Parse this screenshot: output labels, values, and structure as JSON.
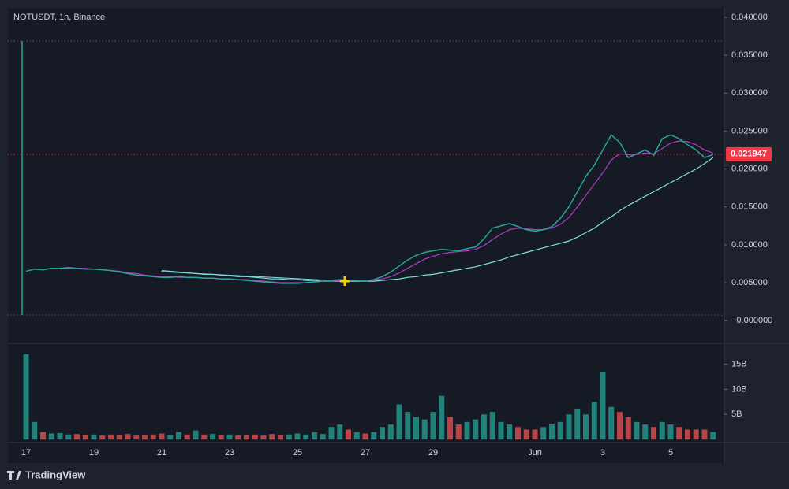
{
  "chart_data": {
    "type": "line",
    "title": "NOTUSDT, 1h, Binance",
    "brand": "TradingView",
    "categories": [
      "17",
      null,
      null,
      null,
      null,
      null,
      null,
      null,
      "19",
      null,
      null,
      null,
      null,
      null,
      null,
      null,
      "21",
      null,
      null,
      null,
      null,
      null,
      null,
      null,
      "23",
      null,
      null,
      null,
      null,
      null,
      null,
      null,
      "25",
      null,
      null,
      null,
      null,
      null,
      null,
      null,
      "27",
      null,
      null,
      null,
      null,
      null,
      null,
      null,
      "29",
      null,
      null,
      null,
      null,
      null,
      null,
      null,
      null,
      null,
      null,
      null,
      "Jun",
      null,
      null,
      null,
      null,
      null,
      null,
      null,
      "3",
      null,
      null,
      null,
      null,
      null,
      null,
      null,
      "5",
      null,
      null,
      null,
      null,
      null
    ],
    "series": [
      {
        "color": "#26a69a",
        "values": [
          0.0065,
          0.0068,
          0.0067,
          0.0069,
          0.0069,
          0.007,
          0.0069,
          0.0068,
          0.0068,
          0.0067,
          0.0066,
          0.0064,
          0.0062,
          0.006,
          0.0059,
          0.0058,
          0.0057,
          0.0057,
          0.0058,
          0.0057,
          0.0057,
          0.0056,
          0.0056,
          0.0055,
          0.0055,
          0.0054,
          0.0053,
          0.0052,
          0.0051,
          0.005,
          0.0049,
          0.0049,
          0.0049,
          0.005,
          0.0051,
          0.0052,
          0.0053,
          0.0054,
          0.0053,
          0.0053,
          0.0052,
          0.0054,
          0.0058,
          0.0064,
          0.0072,
          0.008,
          0.0086,
          0.009,
          0.0092,
          0.0094,
          0.0093,
          0.0092,
          0.0095,
          0.0097,
          0.0108,
          0.0122,
          0.0125,
          0.0128,
          0.0124,
          0.012,
          0.0118,
          0.012,
          0.0124,
          0.0135,
          0.015,
          0.017,
          0.019,
          0.0205,
          0.0225,
          0.0245,
          0.0235,
          0.0215,
          0.022,
          0.0225,
          0.0218,
          0.024,
          0.0245,
          0.024,
          0.0232,
          0.0225,
          0.0215,
          0.0219
        ]
      },
      {
        "color": "#b03ec8",
        "values": [
          null,
          null,
          null,
          null,
          0.0068,
          0.0069,
          0.0069,
          0.0069,
          0.0068,
          0.0067,
          0.0066,
          0.0065,
          0.0063,
          0.0062,
          0.006,
          0.0059,
          0.0058,
          0.0058,
          0.0057,
          0.0057,
          0.0057,
          0.0056,
          0.0056,
          0.0055,
          0.0055,
          0.0054,
          0.0054,
          0.0053,
          0.0052,
          0.0051,
          0.005,
          0.005,
          0.005,
          0.005,
          0.0051,
          0.0052,
          0.0052,
          0.0053,
          0.0053,
          0.0053,
          0.0053,
          0.0053,
          0.0055,
          0.0058,
          0.0063,
          0.0069,
          0.0075,
          0.0081,
          0.0085,
          0.0088,
          0.009,
          0.0091,
          0.0092,
          0.0094,
          0.0099,
          0.0107,
          0.0114,
          0.012,
          0.0122,
          0.0121,
          0.012,
          0.012,
          0.0122,
          0.0127,
          0.0136,
          0.015,
          0.0165,
          0.018,
          0.0195,
          0.0212,
          0.022,
          0.0219,
          0.0219,
          0.0221,
          0.022,
          0.0227,
          0.0234,
          0.0237,
          0.0236,
          0.0232,
          0.0225,
          0.0221
        ]
      },
      {
        "color": "#7fe0e0",
        "values": [
          null,
          null,
          null,
          null,
          null,
          null,
          null,
          null,
          null,
          null,
          null,
          null,
          null,
          null,
          null,
          null,
          0.0066,
          0.0065,
          0.0064,
          0.0063,
          0.0062,
          0.0061,
          0.0061,
          0.006,
          0.0059,
          0.0058,
          0.0058,
          0.0057,
          0.0056,
          0.0055,
          0.0055,
          0.0054,
          0.0054,
          0.0053,
          0.0053,
          0.0052,
          0.0052,
          0.0052,
          0.0052,
          0.0052,
          0.0052,
          0.0052,
          0.0053,
          0.0054,
          0.0055,
          0.0057,
          0.0058,
          0.006,
          0.0061,
          0.0063,
          0.0065,
          0.0067,
          0.0069,
          0.0071,
          0.0074,
          0.0077,
          0.008,
          0.0084,
          0.0087,
          0.009,
          0.0093,
          0.0096,
          0.0099,
          0.0102,
          0.0105,
          0.011,
          0.0116,
          0.0122,
          0.013,
          0.0137,
          0.0145,
          0.0152,
          0.0158,
          0.0164,
          0.017,
          0.0176,
          0.0182,
          0.0188,
          0.0194,
          0.02,
          0.0207,
          0.0215
        ]
      }
    ],
    "ylim": [
      -0.003,
      0.04125
    ],
    "yticks": [
      {
        "value": 0.04,
        "label": "0.040000"
      },
      {
        "value": 0.035,
        "label": "0.035000"
      },
      {
        "value": 0.03,
        "label": "0.030000"
      },
      {
        "value": 0.025,
        "label": "0.025000"
      },
      {
        "value": 0.02,
        "label": "0.020000"
      },
      {
        "value": 0.015,
        "label": "0.015000"
      },
      {
        "value": 0.01,
        "label": "0.010000"
      },
      {
        "value": 0.005,
        "label": "0.005000"
      },
      {
        "value": 0,
        "label": "−0.000000"
      }
    ],
    "last_price": {
      "value": 0.021947,
      "label": "0.021947",
      "color": "#f23645"
    },
    "up_color": "#26a69a",
    "down_color": "#ef5350",
    "volume": {
      "values": [
        17000000000,
        3500000000,
        1500000000,
        1200000000,
        1300000000,
        1000000000,
        1100000000,
        900000000,
        1000000000,
        800000000,
        1000000000,
        900000000,
        1100000000,
        800000000,
        900000000,
        1000000000,
        1200000000,
        900000000,
        1500000000,
        1000000000,
        1800000000,
        1000000000,
        1100000000,
        900000000,
        1000000000,
        800000000,
        900000000,
        1000000000,
        800000000,
        1100000000,
        900000000,
        1000000000,
        1200000000,
        1000000000,
        1500000000,
        1100000000,
        2500000000,
        3000000000,
        2000000000,
        1500000000,
        1200000000,
        1500000000,
        2500000000,
        3000000000,
        7000000000,
        5500000000,
        4500000000,
        4000000000,
        5500000000,
        8700000000,
        4500000000,
        3000000000,
        3500000000,
        4000000000,
        5000000000,
        5500000000,
        3500000000,
        3000000000,
        2500000000,
        2000000000,
        2000000000,
        2500000000,
        3000000000,
        3500000000,
        5000000000,
        6000000000,
        5000000000,
        7500000000,
        13500000000,
        6500000000,
        5500000000,
        4500000000,
        3500000000,
        3000000000,
        2500000000,
        3500000000,
        3000000000,
        2500000000,
        2000000000,
        2000000000,
        2000000000,
        1500000000
      ],
      "ylim": [
        -600000000,
        19000000000
      ],
      "yticks": [
        {
          "value": 5000000000,
          "label": "5B"
        },
        {
          "value": 10000000000,
          "label": "10B"
        },
        {
          "value": 15000000000,
          "label": "15B"
        }
      ]
    }
  }
}
